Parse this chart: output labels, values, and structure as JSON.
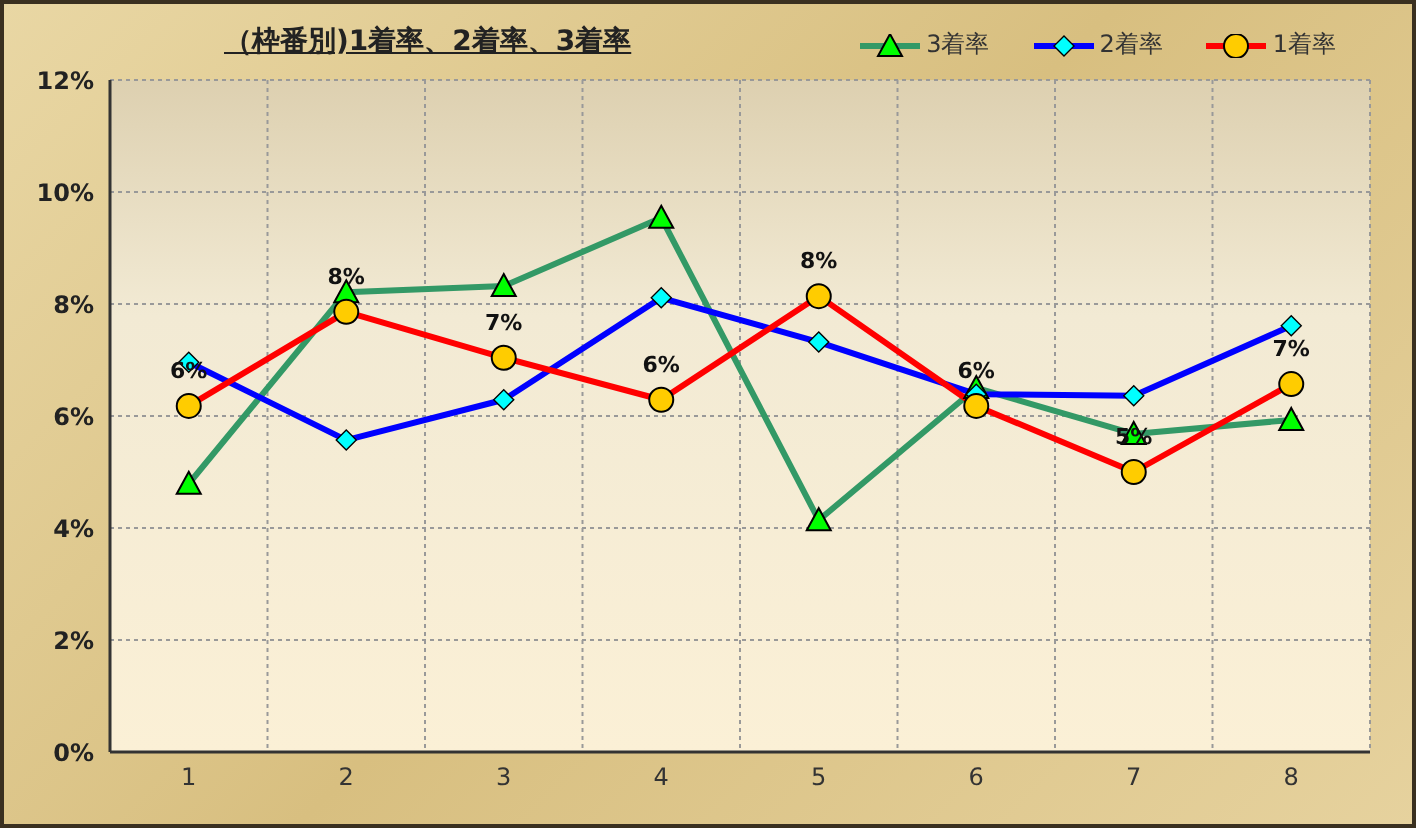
{
  "chart_data": {
    "type": "line",
    "title": "（枠番別)1着率、2着率、3着率",
    "categories": [
      "1",
      "2",
      "3",
      "4",
      "5",
      "6",
      "7",
      "8"
    ],
    "series": [
      {
        "name": "3着率",
        "color": "#339966",
        "marker": "triangle",
        "values": [
          4.79,
          8.21,
          8.32,
          9.54,
          4.14,
          6.5,
          5.68,
          5.93
        ]
      },
      {
        "name": "2着率",
        "color": "#0000ff",
        "marker": "diamond",
        "values": [
          6.96,
          5.57,
          6.29,
          8.11,
          7.32,
          6.39,
          6.36,
          7.61
        ]
      },
      {
        "name": "1着率",
        "color": "#ff0000",
        "marker": "circle",
        "values": [
          6.18,
          7.86,
          7.04,
          6.29,
          8.14,
          6.18,
          5.0,
          6.57
        ],
        "value_labels": [
          "6%",
          "8%",
          "7%",
          "6%",
          "8%",
          "6%",
          "5%",
          "7%"
        ]
      }
    ],
    "ylim": [
      0,
      12
    ],
    "yticks": [
      {
        "value": 0,
        "label": "0%"
      },
      {
        "value": 2,
        "label": "2%"
      },
      {
        "value": 4,
        "label": "4%"
      },
      {
        "value": 6,
        "label": "6%"
      },
      {
        "value": 8,
        "label": "8%"
      },
      {
        "value": 10,
        "label": "10%"
      },
      {
        "value": 12,
        "label": "12%"
      }
    ],
    "grid": true,
    "legend": "top right"
  }
}
